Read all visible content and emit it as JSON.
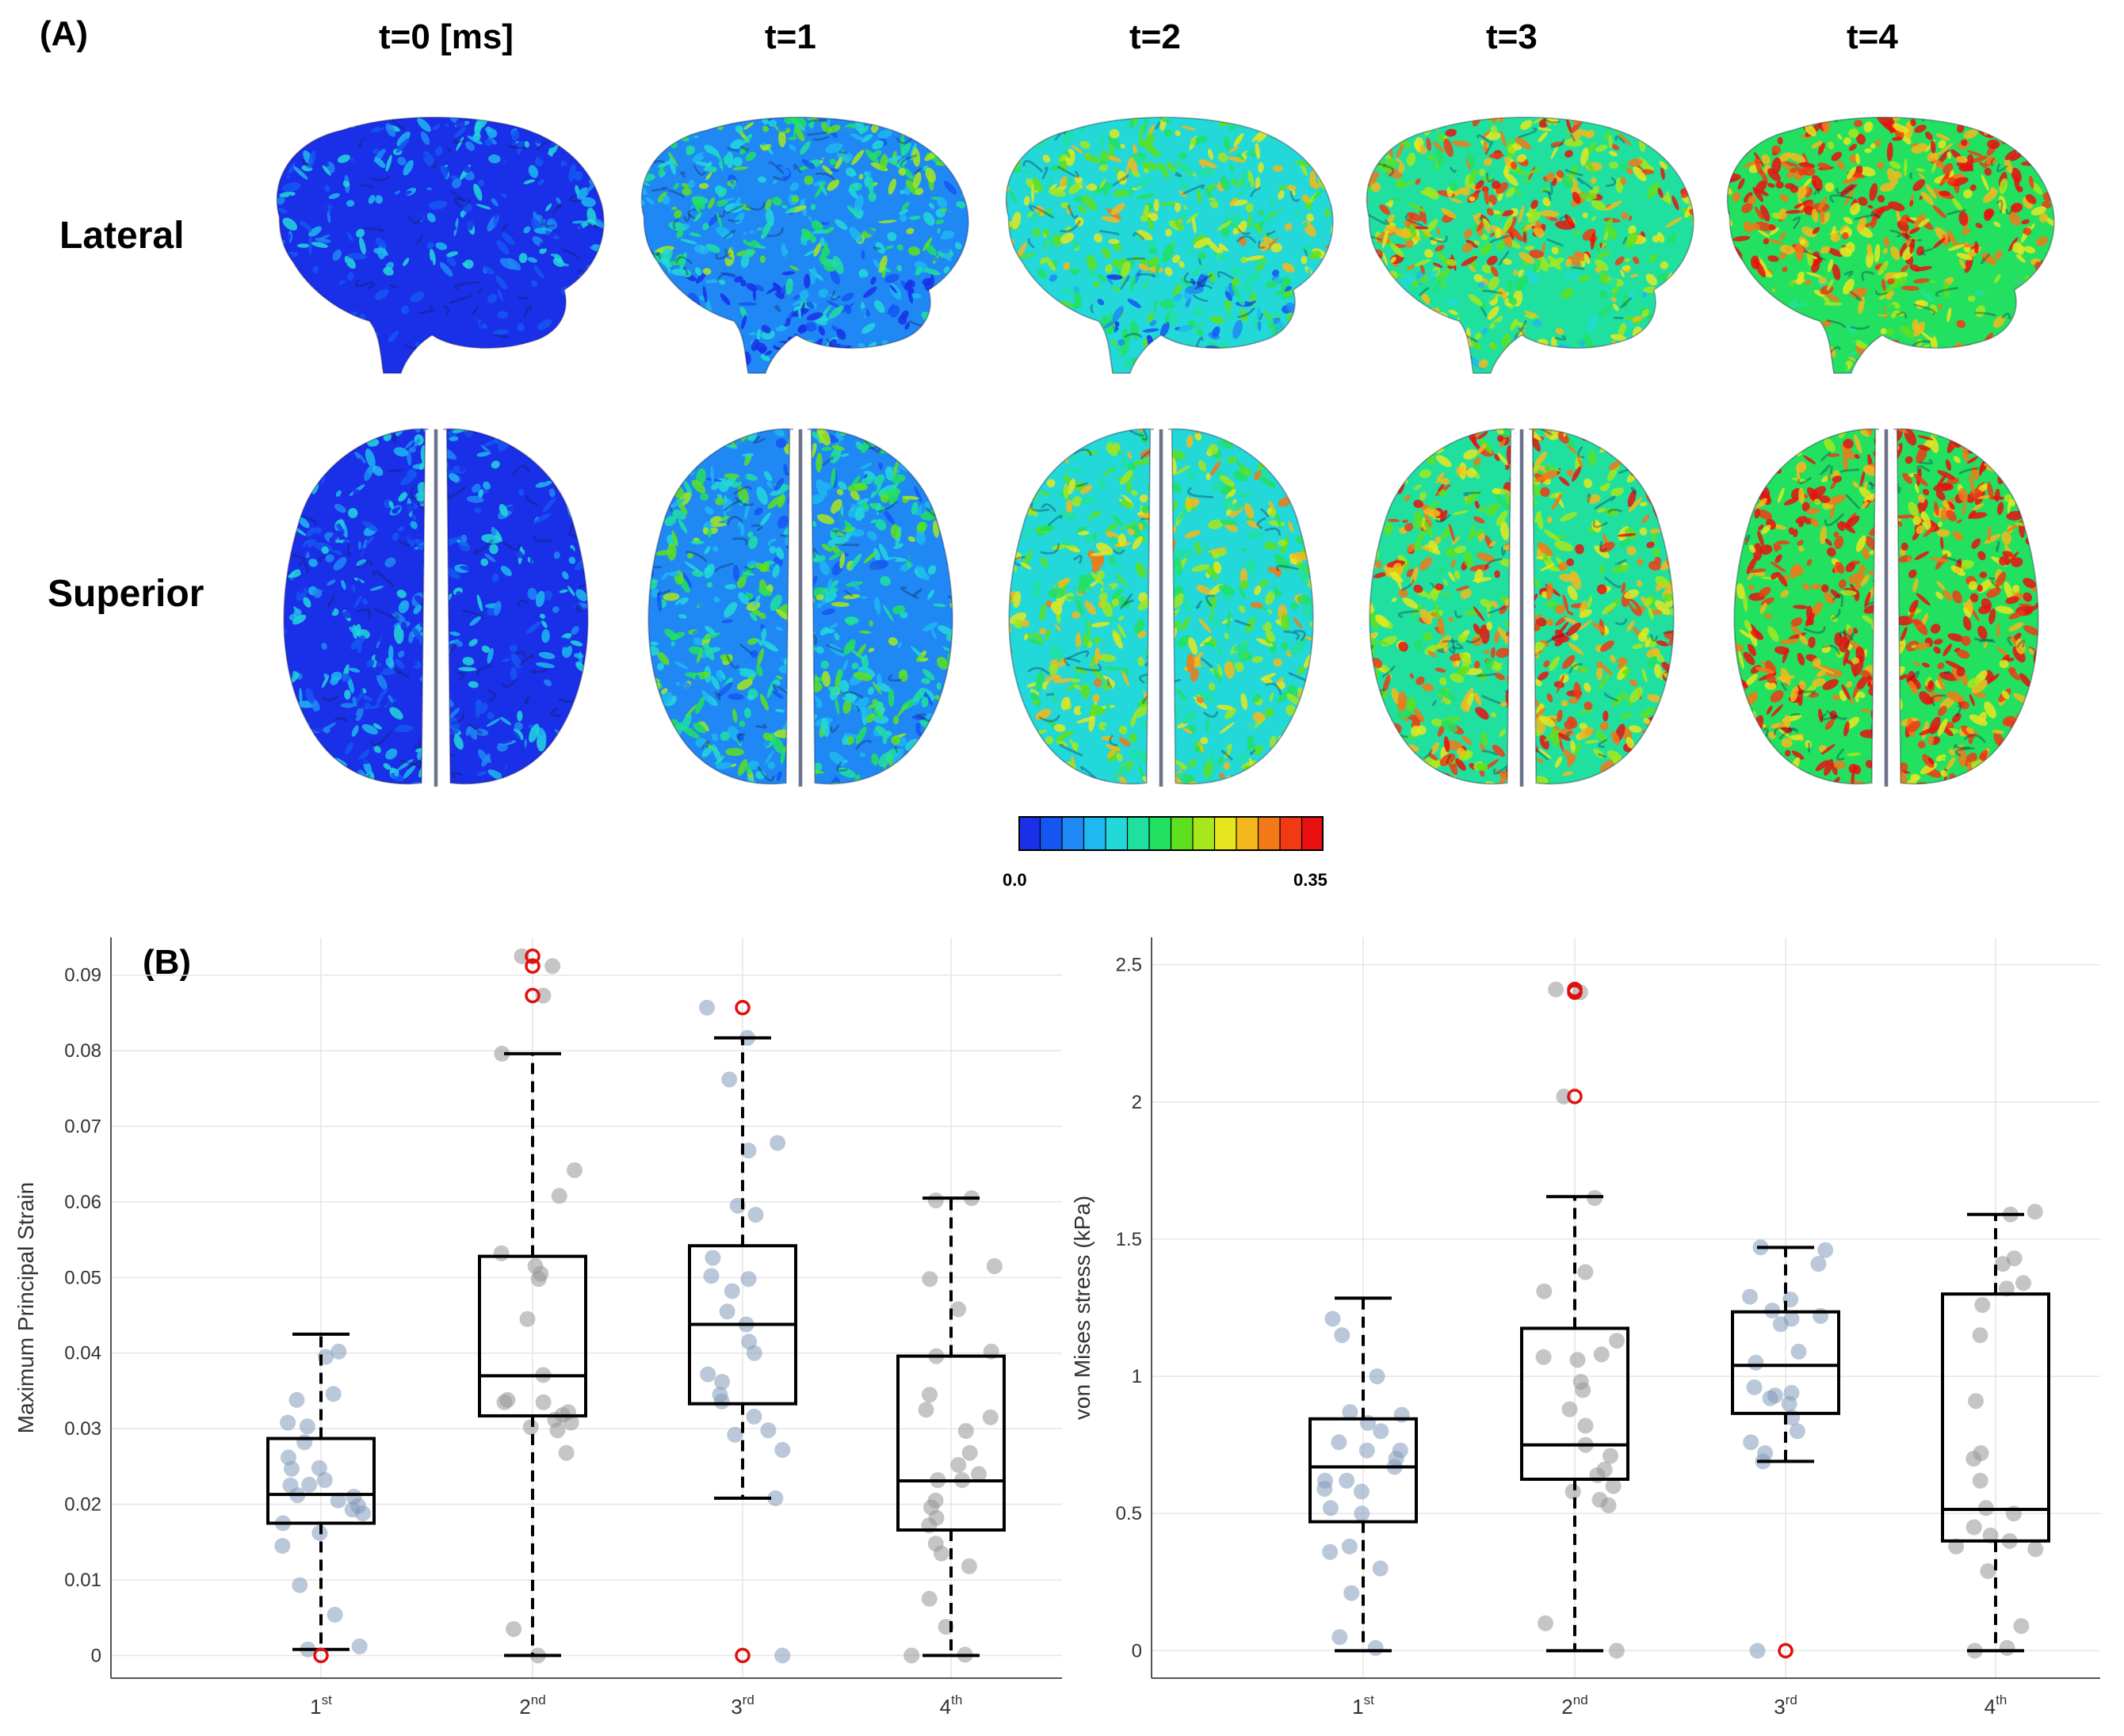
{
  "panel_a": {
    "label": "(A)",
    "time_labels": [
      "t=0  [ms]",
      "t=1",
      "t=2",
      "t=3",
      "t=4"
    ],
    "row_labels": [
      "Lateral",
      "Superior"
    ],
    "colorbar": {
      "min_label": "0.0",
      "max_label": "0.35",
      "colors": [
        "#1a2fe8",
        "#1556f2",
        "#1f88f5",
        "#1fb8f0",
        "#22d8d8",
        "#20e0a0",
        "#22e060",
        "#5ee020",
        "#a6e81c",
        "#e6e61e",
        "#f5b81c",
        "#f27818",
        "#f03a14",
        "#e81010"
      ]
    },
    "brain_mean_level": [
      0.06,
      0.35,
      0.55,
      0.75,
      0.9
    ]
  },
  "panel_b_label": "(B)",
  "chart_data": [
    {
      "type": "box",
      "ylabel": "Maximum Principal Strain",
      "xlabel": "",
      "ylim": [
        -0.003,
        0.095
      ],
      "yticks": [
        "0",
        "0.01",
        "0.02",
        "0.03",
        "0.04",
        "0.05",
        "0.06",
        "0.07",
        "0.08",
        "0.09"
      ],
      "yticks_values": [
        0,
        0.01,
        0.02,
        0.03,
        0.04,
        0.05,
        0.06,
        0.07,
        0.08,
        0.09
      ],
      "categories": [
        {
          "base": "1",
          "sup": "st"
        },
        {
          "base": "2",
          "sup": "nd"
        },
        {
          "base": "3",
          "sup": "rd"
        },
        {
          "base": "4",
          "sup": "th"
        }
      ],
      "boxes": [
        {
          "whisker_low": 0.0008,
          "q1": 0.0175,
          "median": 0.0213,
          "q3": 0.0287,
          "whisker_high": 0.0425,
          "outliers": [
            0.0
          ]
        },
        {
          "whisker_low": 0.0,
          "q1": 0.0317,
          "median": 0.037,
          "q3": 0.0528,
          "whisker_high": 0.0796,
          "outliers": [
            0.0873,
            0.0912,
            0.0925
          ]
        },
        {
          "whisker_low": 0.0208,
          "q1": 0.0333,
          "median": 0.0438,
          "q3": 0.0542,
          "whisker_high": 0.0817,
          "outliers": [
            0.0,
            0.0857
          ]
        },
        {
          "whisker_low": 0.0,
          "q1": 0.0166,
          "median": 0.0231,
          "q3": 0.0396,
          "whisker_high": 0.0605,
          "outliers": []
        }
      ],
      "points": [
        [
          0.0198,
          0.021,
          0.0193,
          0.0175,
          0.0145,
          0.0162,
          0.0303,
          0.0308,
          0.0205,
          0.0226,
          0.0212,
          0.0346,
          0.0225,
          0.0093,
          0.0054,
          0.0008,
          0.0012,
          0.0395,
          0.0402,
          0.0338,
          0.0282,
          0.0262,
          0.0248,
          0.0232,
          0.0188,
          0.0247
        ],
        [
          0.0,
          0.0035,
          0.0925,
          0.0912,
          0.0873,
          0.0796,
          0.0642,
          0.0608,
          0.0532,
          0.0515,
          0.0498,
          0.0505,
          0.0445,
          0.0371,
          0.0335,
          0.0322,
          0.0318,
          0.0312,
          0.0308,
          0.0302,
          0.0298,
          0.0268,
          0.0335,
          0.0338
        ],
        [
          0.0,
          0.0208,
          0.0857,
          0.0817,
          0.0762,
          0.0678,
          0.0668,
          0.0595,
          0.0583,
          0.0526,
          0.0502,
          0.0498,
          0.0482,
          0.0455,
          0.0438,
          0.0415,
          0.04,
          0.0372,
          0.0362,
          0.0345,
          0.0336,
          0.0316,
          0.0298,
          0.0292,
          0.0272
        ],
        [
          0.0,
          0.0001,
          0.0038,
          0.0075,
          0.0118,
          0.0135,
          0.0148,
          0.0172,
          0.0182,
          0.0196,
          0.0205,
          0.0232,
          0.0232,
          0.024,
          0.0252,
          0.0268,
          0.0297,
          0.0315,
          0.0325,
          0.0345,
          0.0396,
          0.0402,
          0.0458,
          0.0498,
          0.0515,
          0.0602,
          0.0605
        ]
      ]
    },
    {
      "type": "box",
      "ylabel": "von Mises stress (kPa)",
      "xlabel": "",
      "ylim": [
        -0.1,
        2.6
      ],
      "yticks": [
        "0",
        "0.5",
        "1",
        "1.5",
        "2",
        "2.5"
      ],
      "yticks_values": [
        0,
        0.5,
        1,
        1.5,
        2,
        2.5
      ],
      "categories": [
        {
          "base": "1",
          "sup": "st"
        },
        {
          "base": "2",
          "sup": "nd"
        },
        {
          "base": "3",
          "sup": "rd"
        },
        {
          "base": "4",
          "sup": "th"
        }
      ],
      "boxes": [
        {
          "whisker_low": 0.0,
          "q1": 0.47,
          "median": 0.67,
          "q3": 0.845,
          "whisker_high": 1.285,
          "outliers": []
        },
        {
          "whisker_low": 0.0,
          "q1": 0.625,
          "median": 0.75,
          "q3": 1.175,
          "whisker_high": 1.655,
          "outliers": [
            2.02,
            2.4,
            2.41
          ]
        },
        {
          "whisker_low": 0.69,
          "q1": 0.865,
          "median": 1.04,
          "q3": 1.235,
          "whisker_high": 1.47,
          "outliers": [
            0.0
          ]
        },
        {
          "whisker_low": 0.0,
          "q1": 0.4,
          "median": 0.515,
          "q3": 1.3,
          "whisker_high": 1.59,
          "outliers": []
        }
      ],
      "points": [
        [
          0.73,
          0.7,
          0.67,
          0.62,
          0.59,
          0.5,
          0.38,
          0.36,
          0.3,
          0.21,
          0.05,
          0.01,
          1.21,
          1.15,
          1.0,
          0.87,
          0.86,
          0.83,
          0.8,
          0.76,
          0.62,
          0.52,
          0.58,
          0.73
        ],
        [
          0.0,
          0.1,
          2.4,
          2.41,
          2.02,
          1.65,
          1.38,
          1.31,
          1.13,
          1.08,
          1.07,
          1.06,
          0.98,
          0.95,
          0.88,
          0.82,
          0.75,
          0.71,
          0.66,
          0.64,
          0.6,
          0.58,
          0.55,
          0.53
        ],
        [
          0.0,
          1.47,
          1.46,
          1.41,
          1.29,
          1.28,
          1.24,
          1.22,
          1.21,
          1.19,
          1.09,
          1.05,
          0.96,
          0.94,
          0.93,
          0.92,
          0.9,
          0.85,
          0.8,
          0.76,
          0.72,
          0.69
        ],
        [
          0.0,
          0.01,
          0.09,
          0.29,
          0.37,
          0.38,
          0.4,
          0.42,
          0.45,
          0.5,
          0.52,
          0.62,
          0.7,
          0.72,
          0.91,
          1.15,
          1.26,
          1.32,
          1.34,
          1.41,
          1.43,
          1.59,
          1.6
        ]
      ]
    }
  ]
}
